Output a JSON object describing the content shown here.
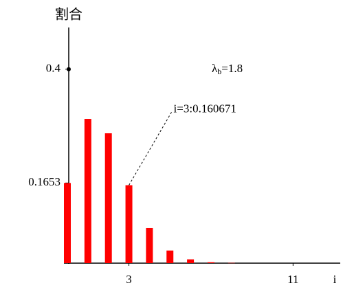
{
  "chart_data": {
    "type": "bar",
    "y_label": "割合",
    "x_label": "i",
    "x": [
      0,
      1,
      2,
      3,
      4,
      5,
      6,
      7,
      8
    ],
    "values": [
      0.1653,
      0.2975,
      0.2678,
      0.1607,
      0.0723,
      0.026,
      0.0078,
      0.002,
      0.0005
    ],
    "color": "#ff0000",
    "xlim": [
      0,
      13.3
    ],
    "xticks": [
      3,
      11
    ],
    "ylim": [
      0,
      0.486
    ],
    "yticks": [
      0.4,
      0.1653
    ],
    "annotation": {
      "text": "i=3:0.160671",
      "x": 3,
      "y": 0.1607
    },
    "parameter": {
      "symbol": "λ",
      "subscript": "b",
      "text": "=1.8"
    }
  }
}
